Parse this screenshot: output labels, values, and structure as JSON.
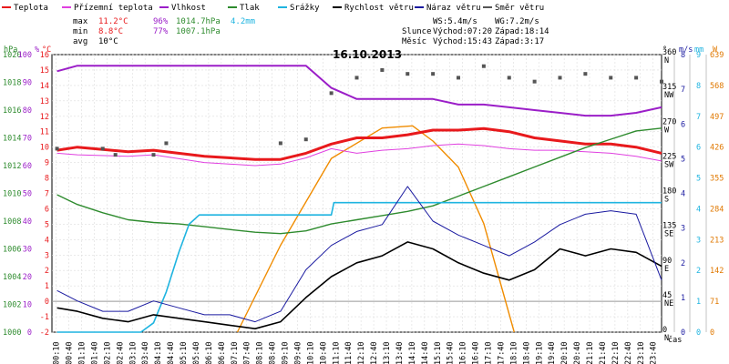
{
  "chart_data": {
    "type": "line",
    "title": "16.10.2013",
    "legend": [
      {
        "name": "Teplota",
        "color": "#e8191c"
      },
      {
        "name": "Přízemní teplota",
        "color": "#e040e0"
      },
      {
        "name": "Vlhkost",
        "color": "#9b1ec8"
      },
      {
        "name": "Tlak",
        "color": "#2e8b2e"
      },
      {
        "name": "Srážky",
        "color": "#1fb4e0"
      },
      {
        "name": "Rychlost větru",
        "color": "#000000"
      },
      {
        "name": "Náraz větru",
        "color": "#1a1aa0"
      },
      {
        "name": "Směr větru",
        "color": "#555555"
      }
    ],
    "stats": {
      "max_label": "max",
      "max_temp": "11.2°C",
      "max_hum": "96%",
      "max_press": "1014.7hPa",
      "rain": "4.2mm",
      "min_label": "min",
      "min_temp": "8.8°C",
      "min_hum": "77%",
      "min_press": "1007.1hPa",
      "avg_label": "avg",
      "avg_temp": "10°C"
    },
    "wind_info": {
      "ws": "WS:5.4m/s",
      "wg": "WG:7.2m/s"
    },
    "sun_info": {
      "sun": "Slunce",
      "sunrise": "Východ:07:20",
      "sunset": "Západ:18:14"
    },
    "moon_info": {
      "moon": "Měsíc",
      "moonrise": "Východ:15:43",
      "moonset": "Západ:3:17"
    },
    "axes": {
      "hpa": {
        "label": "hPa",
        "ticks": [
          1000,
          1002,
          1004,
          1006,
          1008,
          1010,
          1012,
          1014,
          1016,
          1018,
          1020
        ]
      },
      "pct": {
        "label": "%",
        "ticks": [
          0,
          10,
          20,
          30,
          40,
          50,
          60,
          70,
          80,
          90,
          100
        ]
      },
      "temp": {
        "label": "°C",
        "ticks": [
          -2,
          -1,
          0,
          1,
          2,
          3,
          4,
          5,
          6,
          7,
          8,
          9,
          10,
          11,
          12,
          13,
          14,
          15,
          16
        ]
      },
      "dir": {
        "label": "°",
        "ticks": [
          {
            "v": 0,
            "t": "0",
            "d": "N"
          },
          {
            "v": 45,
            "t": "45",
            "d": "NE"
          },
          {
            "v": 90,
            "t": "90",
            "d": "E"
          },
          {
            "v": 135,
            "t": "135",
            "d": "SE"
          },
          {
            "v": 180,
            "t": "180",
            "d": "S"
          },
          {
            "v": 225,
            "t": "225",
            "d": "SW"
          },
          {
            "v": 270,
            "t": "270",
            "d": "W"
          },
          {
            "v": 315,
            "t": "315",
            "d": "NW"
          },
          {
            "v": 360,
            "t": "360",
            "d": "N"
          }
        ]
      },
      "ms": {
        "label": "m/s",
        "ticks": [
          0,
          1,
          2,
          3,
          4,
          5,
          6,
          7,
          8
        ]
      },
      "mm": {
        "label": "mm",
        "ticks": [
          0,
          1,
          2,
          3,
          4,
          5,
          6,
          7,
          8,
          9
        ]
      },
      "solar": {
        "label": "W",
        "ticks": [
          0,
          71,
          142,
          213,
          284,
          355,
          426,
          497,
          568,
          639
        ]
      },
      "time_label": "čas",
      "time_ticks": [
        "00:10",
        "00:40",
        "01:10",
        "01:40",
        "02:10",
        "02:40",
        "03:10",
        "03:40",
        "04:10",
        "04:40",
        "05:10",
        "05:40",
        "06:10",
        "06:40",
        "07:10",
        "07:40",
        "08:10",
        "08:40",
        "09:10",
        "09:40",
        "10:10",
        "10:40",
        "11:10",
        "11:40",
        "12:10",
        "12:40",
        "13:10",
        "13:40",
        "14:10",
        "14:40",
        "15:10",
        "15:40",
        "16:10",
        "16:40",
        "17:10",
        "17:40",
        "18:10",
        "18:40",
        "19:10",
        "19:40",
        "20:10",
        "20:40",
        "21:10",
        "21:40",
        "22:10",
        "22:40",
        "23:10",
        "23:40"
      ]
    },
    "series": [
      {
        "name": "Teplota",
        "axis": "temp",
        "points": [
          [
            0.2,
            9.8
          ],
          [
            1,
            10
          ],
          [
            3,
            9.7
          ],
          [
            4,
            9.8
          ],
          [
            6,
            9.4
          ],
          [
            8,
            9.2
          ],
          [
            9,
            9.2
          ],
          [
            10,
            9.6
          ],
          [
            11,
            10.2
          ],
          [
            12,
            10.6
          ],
          [
            13,
            10.6
          ],
          [
            14,
            10.8
          ],
          [
            15,
            11.1
          ],
          [
            16,
            11.1
          ],
          [
            17,
            11.2
          ],
          [
            18,
            11
          ],
          [
            19,
            10.6
          ],
          [
            20,
            10.4
          ],
          [
            21,
            10.2
          ],
          [
            22,
            10.2
          ],
          [
            23,
            10
          ],
          [
            24,
            9.6
          ]
        ]
      },
      {
        "name": "Přízemní teplota",
        "axis": "temp",
        "points": [
          [
            0.2,
            9.6
          ],
          [
            1,
            9.5
          ],
          [
            3,
            9.4
          ],
          [
            4,
            9.5
          ],
          [
            6,
            9.0
          ],
          [
            8,
            8.8
          ],
          [
            9,
            8.9
          ],
          [
            10,
            9.3
          ],
          [
            11,
            9.9
          ],
          [
            12,
            9.6
          ],
          [
            13,
            9.8
          ],
          [
            14,
            9.9
          ],
          [
            15,
            10.1
          ],
          [
            16,
            10.2
          ],
          [
            17,
            10.1
          ],
          [
            18,
            9.9
          ],
          [
            19,
            9.8
          ],
          [
            20,
            9.8
          ],
          [
            21,
            9.7
          ],
          [
            22,
            9.6
          ],
          [
            23,
            9.4
          ],
          [
            24,
            9.1
          ]
        ]
      },
      {
        "name": "Vlhkost",
        "axis": "pct",
        "points": [
          [
            0.2,
            94
          ],
          [
            1,
            96
          ],
          [
            4,
            96
          ],
          [
            7,
            96
          ],
          [
            9,
            96
          ],
          [
            10,
            96
          ],
          [
            11,
            88
          ],
          [
            12,
            84
          ],
          [
            13,
            84
          ],
          [
            14,
            84
          ],
          [
            15,
            84
          ],
          [
            16,
            82
          ],
          [
            17,
            82
          ],
          [
            18,
            81
          ],
          [
            19,
            80
          ],
          [
            20,
            79
          ],
          [
            21,
            78
          ],
          [
            22,
            78
          ],
          [
            23,
            79
          ],
          [
            24,
            81
          ]
        ]
      },
      {
        "name": "Tlak",
        "axis": "hpa",
        "points": [
          [
            0.2,
            1009.9
          ],
          [
            1,
            1009.2
          ],
          [
            2,
            1008.6
          ],
          [
            3,
            1008.1
          ],
          [
            4,
            1007.9
          ],
          [
            5,
            1007.8
          ],
          [
            6,
            1007.6
          ],
          [
            7,
            1007.4
          ],
          [
            8,
            1007.2
          ],
          [
            9,
            1007.1
          ],
          [
            10,
            1007.3
          ],
          [
            11,
            1007.8
          ],
          [
            12,
            1008.1
          ],
          [
            13,
            1008.4
          ],
          [
            14,
            1008.7
          ],
          [
            15,
            1009.1
          ],
          [
            16,
            1009.8
          ],
          [
            17,
            1010.5
          ],
          [
            18,
            1011.2
          ],
          [
            19,
            1011.9
          ],
          [
            20,
            1012.6
          ],
          [
            21,
            1013.3
          ],
          [
            22,
            1013.9
          ],
          [
            23,
            1014.5
          ],
          [
            24,
            1014.7
          ]
        ]
      },
      {
        "name": "Srážky",
        "axis": "mm",
        "points": [
          [
            0.2,
            0
          ],
          [
            3.5,
            0
          ],
          [
            4,
            0.3
          ],
          [
            4.5,
            1.3
          ],
          [
            5,
            2.6
          ],
          [
            5.4,
            3.5
          ],
          [
            5.8,
            3.8
          ],
          [
            6,
            3.8
          ],
          [
            11,
            3.8
          ],
          [
            11.1,
            4.2
          ],
          [
            24,
            4.2
          ]
        ]
      },
      {
        "name": "Rychlost větru",
        "axis": "ms",
        "points": [
          [
            0.2,
            0.7
          ],
          [
            1,
            0.6
          ],
          [
            2,
            0.4
          ],
          [
            3,
            0.3
          ],
          [
            4,
            0.5
          ],
          [
            5,
            0.4
          ],
          [
            6,
            0.3
          ],
          [
            7,
            0.2
          ],
          [
            8,
            0.1
          ],
          [
            9,
            0.3
          ],
          [
            10,
            1.0
          ],
          [
            11,
            1.6
          ],
          [
            12,
            2.0
          ],
          [
            13,
            2.2
          ],
          [
            14,
            2.6
          ],
          [
            15,
            2.4
          ],
          [
            16,
            2.0
          ],
          [
            17,
            1.7
          ],
          [
            18,
            1.5
          ],
          [
            19,
            1.8
          ],
          [
            20,
            2.4
          ],
          [
            21,
            2.2
          ],
          [
            22,
            2.4
          ],
          [
            23,
            2.3
          ],
          [
            24,
            1.9
          ]
        ]
      },
      {
        "name": "Náraz větru",
        "axis": "ms",
        "points": [
          [
            0.2,
            1.2
          ],
          [
            1,
            0.9
          ],
          [
            2,
            0.6
          ],
          [
            3,
            0.6
          ],
          [
            4,
            0.9
          ],
          [
            5,
            0.7
          ],
          [
            6,
            0.5
          ],
          [
            7,
            0.5
          ],
          [
            8,
            0.3
          ],
          [
            9,
            0.6
          ],
          [
            10,
            1.8
          ],
          [
            11,
            2.5
          ],
          [
            12,
            2.9
          ],
          [
            13,
            3.1
          ],
          [
            14,
            4.2
          ],
          [
            15,
            3.2
          ],
          [
            16,
            2.8
          ],
          [
            17,
            2.5
          ],
          [
            18,
            2.2
          ],
          [
            19,
            2.6
          ],
          [
            20,
            3.1
          ],
          [
            21,
            3.4
          ],
          [
            22,
            3.5
          ],
          [
            23,
            3.4
          ],
          [
            24,
            1.5
          ]
        ]
      },
      {
        "name": "Směr větru",
        "axis": "dir",
        "points": [
          [
            0.2,
            238
          ],
          [
            2,
            238
          ],
          [
            2.5,
            230
          ],
          [
            4,
            230
          ],
          [
            4.5,
            245
          ],
          [
            9,
            245
          ],
          [
            10,
            250
          ],
          [
            11,
            310
          ],
          [
            12,
            330
          ],
          [
            13,
            340
          ],
          [
            14,
            335
          ],
          [
            15,
            335
          ],
          [
            16,
            330
          ],
          [
            17,
            345
          ],
          [
            18,
            330
          ],
          [
            19,
            325
          ],
          [
            20,
            330
          ],
          [
            21,
            335
          ],
          [
            22,
            330
          ],
          [
            23,
            330
          ],
          [
            24,
            325
          ]
        ]
      },
      {
        "name": "Slunce",
        "axis": "solar",
        "points": [
          [
            7.3,
            0
          ],
          [
            9,
            200
          ],
          [
            11,
            400
          ],
          [
            13,
            470
          ],
          [
            14.2,
            475
          ],
          [
            15,
            440
          ],
          [
            16,
            380
          ],
          [
            17,
            250
          ],
          [
            18.2,
            0
          ]
        ]
      }
    ]
  }
}
